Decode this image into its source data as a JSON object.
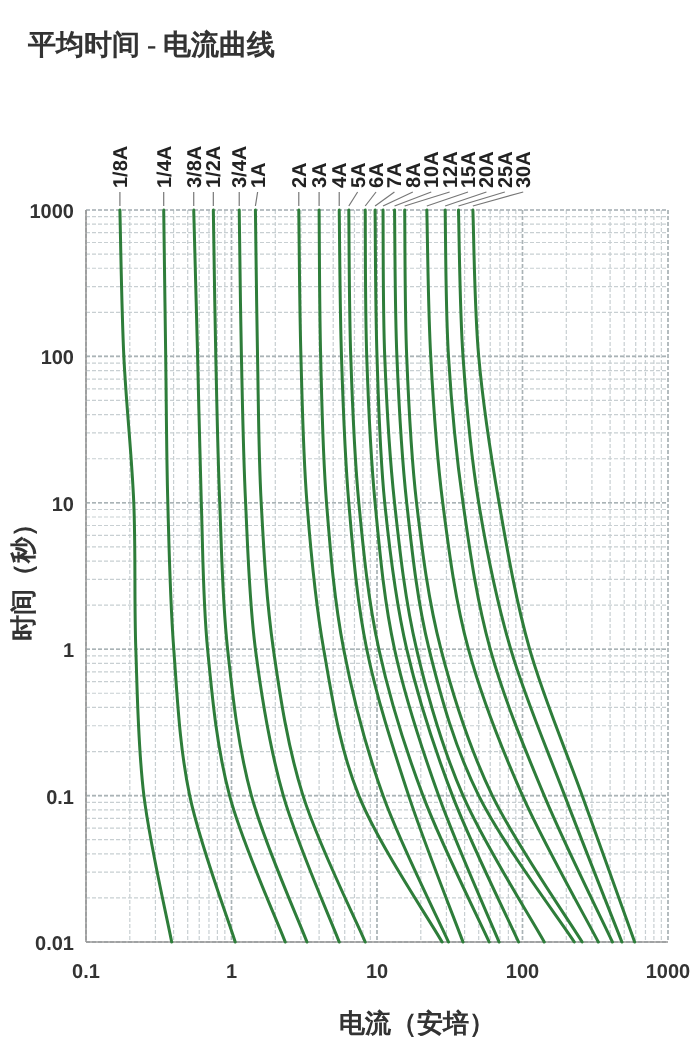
{
  "chart_data": {
    "type": "line",
    "title": "平均时间 - 电流曲线",
    "xlabel": "电流（安培）",
    "ylabel": "时间（秒）",
    "log": "xy",
    "grid": true,
    "xlim": [
      0.1,
      1000
    ],
    "ylim": [
      0.01,
      1000
    ],
    "xticks": [
      0.1,
      1,
      10,
      100,
      1000
    ],
    "yticks": [
      0.01,
      0.1,
      1,
      10,
      100,
      1000
    ],
    "series": [
      {
        "name": "1/8A",
        "color": "#2e7d3a",
        "x": [
          0.171,
          0.182,
          0.213,
          0.22,
          0.25,
          0.388
        ],
        "values": [
          1000,
          100,
          10,
          1,
          0.1,
          0.01
        ]
      },
      {
        "name": "1/4A",
        "color": "#2e7d3a",
        "x": [
          0.342,
          0.353,
          0.365,
          0.401,
          0.516,
          1.06
        ],
        "values": [
          1000,
          100,
          10,
          1,
          0.1,
          0.01
        ]
      },
      {
        "name": "3/8A",
        "color": "#2e7d3a",
        "x": [
          0.55,
          0.585,
          0.62,
          0.685,
          0.97,
          2.34
        ],
        "values": [
          1000,
          100,
          10,
          1,
          0.1,
          0.01
        ]
      },
      {
        "name": "1/2A",
        "color": "#2e7d3a",
        "x": [
          0.75,
          0.78,
          0.83,
          0.94,
          1.37,
          3.3
        ],
        "values": [
          1000,
          100,
          10,
          1,
          0.1,
          0.01
        ]
      },
      {
        "name": "3/4A",
        "color": "#2e7d3a",
        "x": [
          1.13,
          1.17,
          1.25,
          1.46,
          2.27,
          5.5
        ],
        "values": [
          1000,
          100,
          10,
          1,
          0.1,
          0.01
        ]
      },
      {
        "name": "1A",
        "color": "#2e7d3a",
        "x": [
          1.46,
          1.51,
          1.6,
          1.94,
          3.1,
          8.3
        ],
        "values": [
          1000,
          100,
          10,
          1,
          0.1,
          0.01
        ]
      },
      {
        "name": "2A",
        "color": "#2e7d3a",
        "x": [
          2.9,
          3.0,
          3.3,
          4.3,
          7.5,
          28
        ],
        "values": [
          1000,
          100,
          10,
          1,
          0.1,
          0.01
        ]
      },
      {
        "name": "3A",
        "color": "#2e7d3a",
        "x": [
          4.0,
          4.1,
          4.5,
          5.9,
          11,
          31
        ],
        "values": [
          1000,
          100,
          10,
          1,
          0.1,
          0.01
        ]
      },
      {
        "name": "4A",
        "color": "#2e7d3a",
        "x": [
          5.5,
          5.7,
          6.4,
          8.5,
          16.5,
          39
        ],
        "values": [
          1000,
          100,
          10,
          1,
          0.1,
          0.01
        ]
      },
      {
        "name": "5A",
        "color": "#2e7d3a",
        "x": [
          6.4,
          6.6,
          7.5,
          10.3,
          20.7,
          59
        ],
        "values": [
          1000,
          100,
          10,
          1,
          0.1,
          0.01
        ]
      },
      {
        "name": "6A",
        "color": "#2e7d3a",
        "x": [
          8.3,
          8.5,
          9.7,
          13.2,
          26.5,
          69
        ],
        "values": [
          1000,
          100,
          10,
          1,
          0.1,
          0.01
        ]
      },
      {
        "name": "7A",
        "color": "#2e7d3a",
        "x": [
          9.7,
          10,
          11.3,
          16,
          33,
          94
        ],
        "values": [
          1000,
          100,
          10,
          1,
          0.1,
          0.01
        ]
      },
      {
        "name": "8A",
        "color": "#2e7d3a",
        "x": [
          11,
          11.3,
          13.2,
          18.7,
          39,
          141
        ],
        "values": [
          1000,
          100,
          10,
          1,
          0.1,
          0.01
        ]
      },
      {
        "name": "10A",
        "color": "#2e7d3a",
        "x": [
          13.2,
          13.7,
          16,
          22.8,
          50,
          227
        ],
        "values": [
          1000,
          100,
          10,
          1,
          0.1,
          0.01
        ]
      },
      {
        "name": "12A",
        "color": "#2e7d3a",
        "x": [
          15.5,
          16,
          18.7,
          27.5,
          62,
          257
        ],
        "values": [
          1000,
          100,
          10,
          1,
          0.1,
          0.01
        ]
      },
      {
        "name": "15A",
        "color": "#2e7d3a",
        "x": [
          22,
          23.4,
          28.3,
          42.5,
          100,
          332
        ],
        "values": [
          1000,
          100,
          10,
          1,
          0.1,
          0.01
        ]
      },
      {
        "name": "20A",
        "color": "#2e7d3a",
        "x": [
          29.4,
          31,
          39,
          60,
          141,
          415
        ],
        "values": [
          1000,
          100,
          10,
          1,
          0.1,
          0.01
        ]
      },
      {
        "name": "25A",
        "color": "#2e7d3a",
        "x": [
          36.3,
          39,
          50,
          83,
          195,
          482
        ],
        "values": [
          1000,
          100,
          10,
          1,
          0.1,
          0.01
        ]
      },
      {
        "name": "30A",
        "color": "#2e7d3a",
        "x": [
          45.6,
          50,
          69,
          112,
          257,
          590
        ],
        "values": [
          1000,
          100,
          10,
          1,
          0.1,
          0.01
        ]
      }
    ]
  }
}
